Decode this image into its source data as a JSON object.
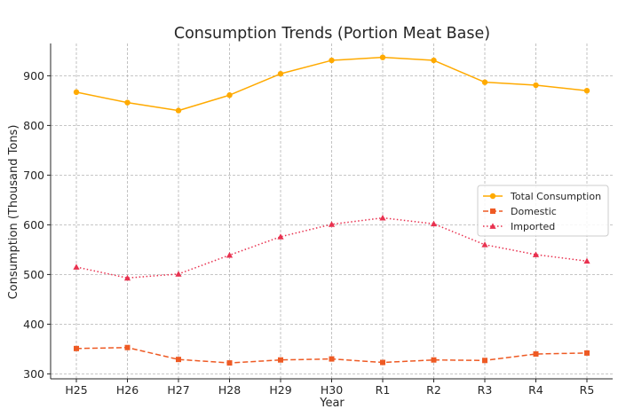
{
  "chart_data": {
    "type": "line",
    "title": "Consumption Trends (Portion Meat Base)",
    "xlabel": "Year",
    "ylabel": "Consumption (Thousand Tons)",
    "categories": [
      "H25",
      "H26",
      "H27",
      "H28",
      "H29",
      "H30",
      "R1",
      "R2",
      "R3",
      "R4",
      "R5"
    ],
    "ylim": [
      290,
      965
    ],
    "yticks": [
      300,
      400,
      500,
      600,
      700,
      800,
      900
    ],
    "grid": true,
    "legend_position": "center-right",
    "series": [
      {
        "name": "Total Consumption",
        "color": "#ffaa00",
        "line_style": "solid",
        "marker": "circle",
        "values": [
          867,
          846,
          830,
          861,
          904,
          931,
          937,
          931,
          887,
          881,
          870
        ]
      },
      {
        "name": "Domestic",
        "color": "#ee5a24",
        "line_style": "dashed",
        "marker": "square",
        "values": [
          351,
          353,
          329,
          322,
          328,
          330,
          323,
          328,
          327,
          340,
          342
        ]
      },
      {
        "name": "Imported",
        "color": "#e8314f",
        "line_style": "dotted",
        "marker": "triangle",
        "values": [
          515,
          493,
          501,
          539,
          576,
          601,
          614,
          602,
          560,
          540,
          527
        ]
      }
    ]
  }
}
